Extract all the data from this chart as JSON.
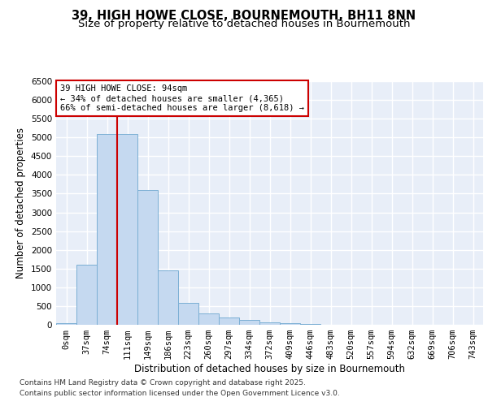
{
  "title_line1": "39, HIGH HOWE CLOSE, BOURNEMOUTH, BH11 8NN",
  "title_line2": "Size of property relative to detached houses in Bournemouth",
  "xlabel": "Distribution of detached houses by size in Bournemouth",
  "ylabel": "Number of detached properties",
  "bar_color": "#c5d9f0",
  "bar_edge_color": "#7bafd4",
  "background_color": "#e8eef8",
  "grid_color": "#ffffff",
  "categories": [
    "0sqm",
    "37sqm",
    "74sqm",
    "111sqm",
    "149sqm",
    "186sqm",
    "223sqm",
    "260sqm",
    "297sqm",
    "334sqm",
    "372sqm",
    "409sqm",
    "446sqm",
    "483sqm",
    "520sqm",
    "557sqm",
    "594sqm",
    "632sqm",
    "669sqm",
    "706sqm",
    "743sqm"
  ],
  "values": [
    50,
    1600,
    5100,
    5100,
    3600,
    1450,
    590,
    300,
    185,
    120,
    65,
    35,
    18,
    10,
    5,
    2,
    1,
    0,
    0,
    0,
    0
  ],
  "ylim": [
    0,
    6500
  ],
  "yticks": [
    0,
    500,
    1000,
    1500,
    2000,
    2500,
    3000,
    3500,
    4000,
    4500,
    5000,
    5500,
    6000,
    6500
  ],
  "vline_x_index": 2.5,
  "annotation_text": "39 HIGH HOWE CLOSE: 94sqm\n← 34% of detached houses are smaller (4,365)\n66% of semi-detached houses are larger (8,618) →",
  "annotation_box_color": "#ffffff",
  "annotation_box_edge": "#cc0000",
  "vline_color": "#cc0000",
  "footer_line1": "Contains HM Land Registry data © Crown copyright and database right 2025.",
  "footer_line2": "Contains public sector information licensed under the Open Government Licence v3.0.",
  "title_fontsize": 10.5,
  "subtitle_fontsize": 9.5,
  "axis_label_fontsize": 8.5,
  "tick_fontsize": 7.5,
  "annotation_fontsize": 7.5,
  "footer_fontsize": 6.5
}
